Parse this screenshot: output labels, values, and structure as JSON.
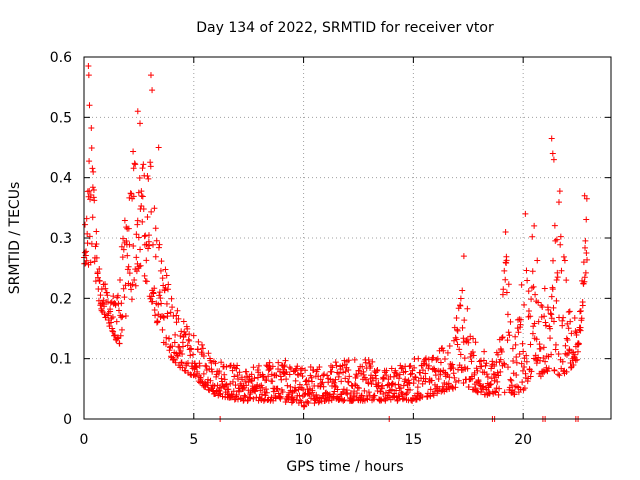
{
  "chart_data": {
    "type": "scatter",
    "title": "Day 134 of 2022, SRMTID for receiver vtor",
    "xlabel": "GPS time / hours",
    "ylabel": "SRMTID / TECUs",
    "xlim": [
      0,
      24
    ],
    "ylim": [
      0,
      0.6
    ],
    "xticks": [
      0,
      5,
      10,
      15,
      20
    ],
    "yticks": [
      0,
      0.1,
      0.2,
      0.3,
      0.4,
      0.5,
      0.6
    ],
    "xtick_labels": [
      "0",
      "5",
      "10",
      "15",
      "20"
    ],
    "ytick_labels": [
      "0",
      "0.1",
      "0.2",
      "0.3",
      "0.4",
      "0.5",
      "0.6"
    ],
    "grid": true,
    "marker": "+",
    "series_color": "#ff0000",
    "envelope": {
      "x": [
        0.0,
        0.3,
        0.5,
        0.8,
        1.2,
        1.6,
        1.9,
        2.2,
        2.6,
        3.0,
        3.4,
        3.8,
        4.2,
        4.6,
        5.0,
        5.5,
        6.0,
        7.0,
        8.0,
        9.0,
        10.0,
        11.0,
        12.0,
        13.0,
        14.0,
        15.0,
        16.0,
        16.8,
        17.3,
        17.6,
        18.2,
        18.7,
        19.2,
        19.6,
        20.1,
        20.5,
        20.8,
        21.2,
        21.6,
        22.1,
        22.5,
        22.9
      ],
      "low": [
        0.24,
        0.26,
        0.22,
        0.18,
        0.15,
        0.12,
        0.17,
        0.2,
        0.25,
        0.2,
        0.15,
        0.11,
        0.09,
        0.08,
        0.07,
        0.05,
        0.04,
        0.03,
        0.03,
        0.03,
        0.02,
        0.03,
        0.03,
        0.03,
        0.03,
        0.03,
        0.04,
        0.05,
        0.06,
        0.05,
        0.04,
        0.04,
        0.04,
        0.04,
        0.05,
        0.08,
        0.07,
        0.08,
        0.07,
        0.08,
        0.1,
        0.26
      ],
      "high": [
        0.32,
        0.55,
        0.33,
        0.24,
        0.2,
        0.22,
        0.4,
        0.48,
        0.42,
        0.45,
        0.3,
        0.24,
        0.19,
        0.16,
        0.14,
        0.12,
        0.1,
        0.09,
        0.09,
        0.1,
        0.09,
        0.09,
        0.1,
        0.1,
        0.09,
        0.1,
        0.11,
        0.13,
        0.26,
        0.15,
        0.12,
        0.11,
        0.3,
        0.14,
        0.32,
        0.3,
        0.25,
        0.2,
        0.42,
        0.18,
        0.16,
        0.37
      ]
    },
    "spikes": [
      {
        "x": 0.2,
        "y": 0.585
      },
      {
        "x": 0.22,
        "y": 0.57
      },
      {
        "x": 0.25,
        "y": 0.52
      },
      {
        "x": 2.45,
        "y": 0.51
      },
      {
        "x": 2.55,
        "y": 0.49
      },
      {
        "x": 3.05,
        "y": 0.57
      },
      {
        "x": 3.1,
        "y": 0.545
      },
      {
        "x": 3.4,
        "y": 0.45
      },
      {
        "x": 17.3,
        "y": 0.27
      },
      {
        "x": 19.2,
        "y": 0.31
      },
      {
        "x": 20.1,
        "y": 0.34
      },
      {
        "x": 20.5,
        "y": 0.32
      },
      {
        "x": 21.3,
        "y": 0.465
      },
      {
        "x": 21.35,
        "y": 0.44
      },
      {
        "x": 21.4,
        "y": 0.43
      },
      {
        "x": 22.8,
        "y": 0.37
      },
      {
        "x": 22.9,
        "y": 0.365
      }
    ],
    "zero_points": [
      {
        "x": 6.2,
        "y": 0
      },
      {
        "x": 13.9,
        "y": 0
      },
      {
        "x": 18.6,
        "y": 0
      },
      {
        "x": 18.7,
        "y": 0
      },
      {
        "x": 20.9,
        "y": 0
      },
      {
        "x": 21.0,
        "y": 0
      },
      {
        "x": 22.4,
        "y": 0
      },
      {
        "x": 22.5,
        "y": 0
      }
    ],
    "n_points": 1400
  }
}
